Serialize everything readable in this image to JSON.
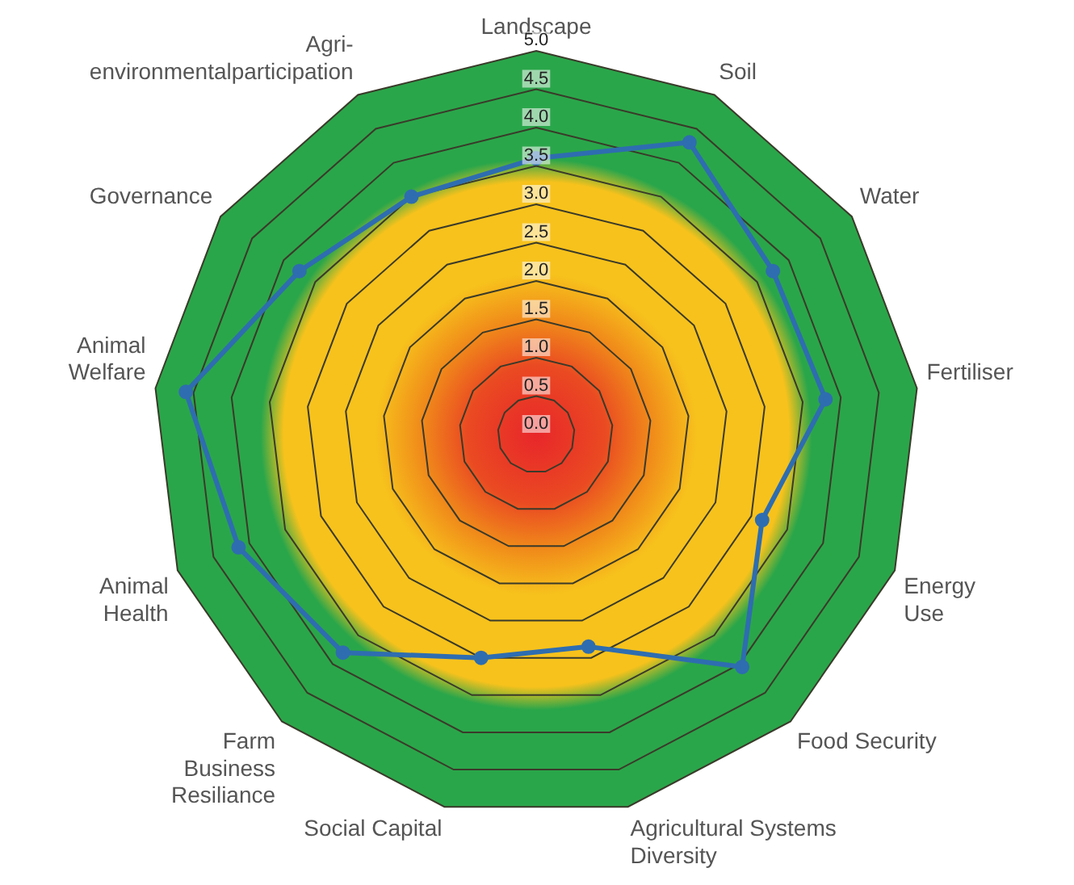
{
  "chart_data": {
    "type": "radar",
    "categories": [
      "Landscape",
      "Soil",
      "Water",
      "Fertiliser",
      "Energy\nUse",
      "Food Security",
      "Agricultural Systems\nDiversity",
      "Social Capital",
      "Farm\nBusiness\nResiliance",
      "Animal\nHealth",
      "Animal\nWelfare",
      "Governance",
      "Agri-\nenvironmentalparticipation"
    ],
    "series": [
      {
        "color": "#2e6db0",
        "values": [
          3.6,
          4.3,
          3.75,
          3.8,
          3.15,
          4.05,
          2.85,
          3.0,
          3.8,
          4.15,
          4.6,
          3.75,
          3.5
        ]
      }
    ],
    "ylim": [
      0,
      5
    ],
    "yticks": [
      {
        "value": 0,
        "label": "0.0"
      },
      {
        "value": 0.5,
        "label": "0.5"
      },
      {
        "value": 1,
        "label": "1.0"
      },
      {
        "value": 1.5,
        "label": "1.5"
      },
      {
        "value": 2,
        "label": "2.0"
      },
      {
        "value": 2.5,
        "label": "2.5"
      },
      {
        "value": 3,
        "label": "3.0"
      },
      {
        "value": 3.5,
        "label": "3.5"
      },
      {
        "value": 4,
        "label": "4.0"
      },
      {
        "value": 4.5,
        "label": "4.5"
      },
      {
        "value": 5,
        "label": "5.0"
      }
    ],
    "grid": true,
    "marker": "circle",
    "legend": false
  }
}
